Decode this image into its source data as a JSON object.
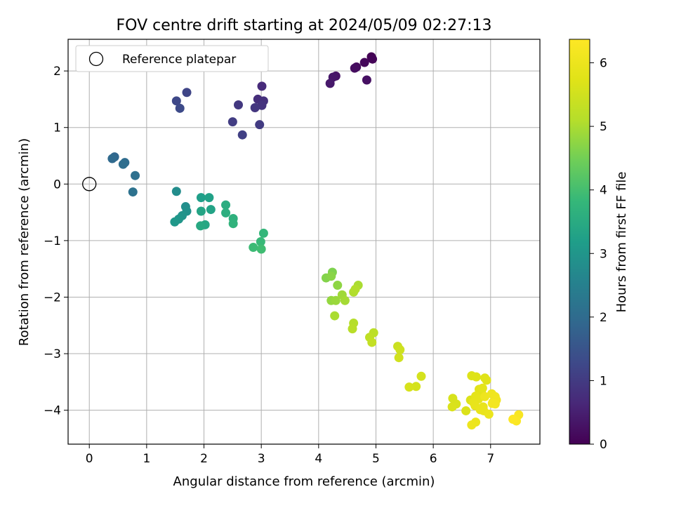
{
  "chart_data": {
    "type": "scatter",
    "title": "FOV centre drift starting at 2024/05/09 02:27:13",
    "xlabel": "Angular distance from reference (arcmin)",
    "ylabel": "Rotation from reference (arcmin)",
    "xlim": [
      -0.37,
      7.86
    ],
    "ylim": [
      -4.6,
      2.56
    ],
    "x_ticks": [
      0,
      1,
      2,
      3,
      4,
      5,
      6,
      7
    ],
    "y_ticks": [
      2,
      1,
      0,
      -1,
      -2,
      -3,
      -4
    ],
    "grid": true,
    "legend": {
      "placement": "upper-left",
      "entries": [
        "Reference platepar"
      ]
    },
    "reference_point": {
      "x": 0,
      "y": 0
    },
    "colorbar": {
      "label": "Hours from first FF file",
      "range": [
        0,
        6.37
      ],
      "ticks": [
        0,
        1,
        2,
        3,
        4,
        5,
        6
      ],
      "colormap": "viridis"
    },
    "points": [
      [
        4.92,
        2.25,
        0.0
      ],
      [
        4.94,
        2.21,
        0.05
      ],
      [
        4.8,
        2.15,
        0.1
      ],
      [
        4.66,
        2.07,
        0.15
      ],
      [
        4.63,
        2.05,
        0.2
      ],
      [
        4.84,
        1.84,
        0.25
      ],
      [
        4.3,
        1.91,
        0.3
      ],
      [
        4.25,
        1.89,
        0.35
      ],
      [
        4.2,
        1.78,
        0.4
      ],
      [
        3.01,
        1.73,
        0.7
      ],
      [
        2.94,
        1.5,
        0.75
      ],
      [
        3.04,
        1.47,
        0.8
      ],
      [
        3.01,
        1.39,
        0.85
      ],
      [
        2.89,
        1.35,
        0.9
      ],
      [
        2.6,
        1.4,
        0.95
      ],
      [
        2.97,
        1.05,
        1.0
      ],
      [
        2.5,
        1.1,
        1.05
      ],
      [
        2.67,
        0.87,
        1.1
      ],
      [
        1.7,
        1.62,
        1.2
      ],
      [
        1.52,
        1.47,
        1.25
      ],
      [
        1.58,
        1.34,
        1.3
      ],
      [
        0.44,
        0.48,
        1.9
      ],
      [
        0.4,
        0.45,
        1.95
      ],
      [
        0.62,
        0.38,
        2.0
      ],
      [
        0.59,
        0.35,
        2.05
      ],
      [
        0.8,
        0.15,
        2.1
      ],
      [
        0.76,
        -0.14,
        2.15
      ],
      [
        1.52,
        -0.13,
        2.8
      ],
      [
        1.68,
        -0.4,
        2.85
      ],
      [
        1.7,
        -0.48,
        2.9
      ],
      [
        1.62,
        -0.56,
        2.95
      ],
      [
        1.56,
        -0.62,
        3.0
      ],
      [
        1.49,
        -0.67,
        3.05
      ],
      [
        1.95,
        -0.24,
        3.2
      ],
      [
        2.09,
        -0.24,
        3.25
      ],
      [
        2.12,
        -0.45,
        3.3
      ],
      [
        1.95,
        -0.48,
        3.35
      ],
      [
        2.02,
        -0.72,
        3.4
      ],
      [
        1.94,
        -0.74,
        3.45
      ],
      [
        2.38,
        -0.37,
        3.55
      ],
      [
        2.38,
        -0.51,
        3.6
      ],
      [
        2.51,
        -0.61,
        3.65
      ],
      [
        2.51,
        -0.7,
        3.7
      ],
      [
        3.04,
        -0.87,
        3.8
      ],
      [
        2.99,
        -1.02,
        3.85
      ],
      [
        2.86,
        -1.12,
        3.9
      ],
      [
        3.0,
        -1.15,
        3.95
      ],
      [
        4.24,
        -1.56,
        4.6
      ],
      [
        4.13,
        -1.66,
        4.65
      ],
      [
        4.22,
        -1.63,
        4.7
      ],
      [
        4.33,
        -1.79,
        4.75
      ],
      [
        4.22,
        -2.06,
        4.8
      ],
      [
        4.3,
        -2.06,
        4.85
      ],
      [
        4.41,
        -1.96,
        4.9
      ],
      [
        4.46,
        -2.06,
        4.95
      ],
      [
        4.28,
        -2.33,
        5.0
      ],
      [
        4.69,
        -1.79,
        5.0
      ],
      [
        4.61,
        -1.91,
        5.05
      ],
      [
        4.64,
        -1.86,
        5.08
      ],
      [
        4.61,
        -2.46,
        5.1
      ],
      [
        4.59,
        -2.56,
        5.15
      ],
      [
        4.96,
        -2.63,
        5.2
      ],
      [
        4.89,
        -2.71,
        5.25
      ],
      [
        4.93,
        -2.8,
        5.3
      ],
      [
        5.38,
        -2.87,
        5.4
      ],
      [
        5.42,
        -2.93,
        5.45
      ],
      [
        5.4,
        -3.07,
        5.5
      ],
      [
        5.79,
        -3.4,
        5.55
      ],
      [
        5.7,
        -3.58,
        5.55
      ],
      [
        5.58,
        -3.59,
        5.6
      ],
      [
        6.34,
        -3.79,
        5.6
      ],
      [
        6.4,
        -3.89,
        5.62
      ],
      [
        6.33,
        -3.94,
        5.64
      ],
      [
        6.57,
        -4.01,
        5.66
      ],
      [
        6.65,
        -3.82,
        5.68
      ],
      [
        6.67,
        -3.39,
        5.7
      ],
      [
        6.75,
        -3.41,
        5.72
      ],
      [
        6.9,
        -3.43,
        5.74
      ],
      [
        6.93,
        -3.47,
        5.76
      ],
      [
        6.8,
        -3.63,
        5.78
      ],
      [
        6.84,
        -3.68,
        5.8
      ],
      [
        6.86,
        -3.61,
        5.82
      ],
      [
        6.74,
        -3.75,
        5.84
      ],
      [
        6.79,
        -3.8,
        5.86
      ],
      [
        6.7,
        -3.86,
        5.88
      ],
      [
        6.73,
        -3.92,
        5.9
      ],
      [
        6.82,
        -3.99,
        5.92
      ],
      [
        6.87,
        -3.94,
        5.94
      ],
      [
        6.88,
        -4.01,
        5.96
      ],
      [
        6.97,
        -4.07,
        5.98
      ],
      [
        6.74,
        -4.21,
        6.0
      ],
      [
        6.67,
        -4.26,
        6.02
      ],
      [
        6.9,
        -3.76,
        6.04
      ],
      [
        7.02,
        -3.71,
        6.06
      ],
      [
        7.08,
        -3.76,
        6.08
      ],
      [
        7.1,
        -3.82,
        6.1
      ],
      [
        7.04,
        -3.86,
        6.12
      ],
      [
        7.08,
        -3.89,
        6.14
      ],
      [
        7.03,
        -3.88,
        6.16
      ],
      [
        7.49,
        -4.08,
        6.25
      ],
      [
        7.45,
        -4.19,
        6.3
      ],
      [
        7.39,
        -4.16,
        6.35
      ]
    ]
  }
}
